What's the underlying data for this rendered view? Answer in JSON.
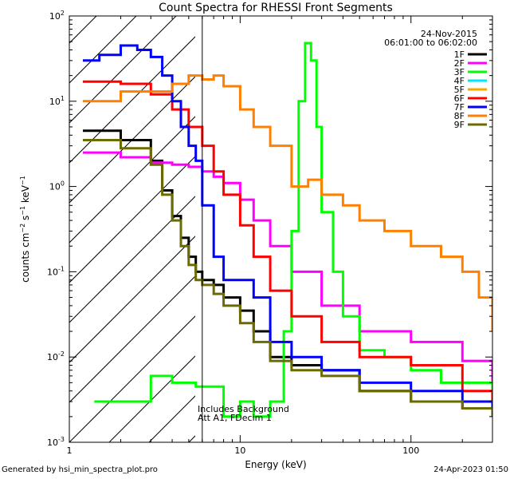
{
  "chart_data": {
    "type": "line",
    "title": "Count Spectra for RHESSI Front Segments",
    "xlabel": "Energy (keV)",
    "ylabel": "counts cm-2 s-1 keV-1",
    "xscale": "log",
    "yscale": "log",
    "xlim": [
      1,
      300
    ],
    "ylim": [
      0.001,
      100
    ],
    "x_tick_labels": [
      "1",
      "10",
      "100"
    ],
    "y_tick_labels": [
      "10-3",
      "10-2",
      "10-1",
      "100",
      "101",
      "102"
    ],
    "date": "24-Nov-2015",
    "time_range": "06:01:00 to 06:02:00",
    "threshold_energy_keV": 6,
    "annotations": [
      "Includes Background",
      "Att A1, FDecim 1"
    ],
    "legend_position": "top-right",
    "series": [
      {
        "name": "1F",
        "color": "#000000",
        "x": [
          1.2,
          2,
          3,
          3.5,
          4,
          4.5,
          5,
          5.5,
          6,
          7,
          8,
          10,
          12,
          15,
          20,
          30,
          50,
          100,
          200,
          300
        ],
        "values": [
          4.5,
          3.5,
          2.0,
          0.9,
          0.45,
          0.25,
          0.15,
          0.1,
          0.08,
          0.07,
          0.05,
          0.035,
          0.02,
          0.01,
          0.008,
          0.007,
          0.004,
          0.003,
          0.0025,
          0.002
        ]
      },
      {
        "name": "2F",
        "color": "#ff00ff",
        "x": [
          1.2,
          2,
          3,
          4,
          5,
          6,
          7,
          8,
          10,
          12,
          15,
          20,
          30,
          50,
          100,
          200,
          300
        ],
        "values": [
          2.5,
          2.2,
          1.9,
          1.8,
          1.7,
          1.5,
          1.3,
          1.1,
          0.7,
          0.4,
          0.2,
          0.1,
          0.04,
          0.02,
          0.015,
          0.009,
          0.005
        ]
      },
      {
        "name": "3F",
        "color": "#00ff00",
        "x": [
          1.4,
          2,
          3,
          4,
          5.5,
          8,
          10,
          12,
          15,
          18,
          20,
          22,
          24,
          26,
          28,
          30,
          35,
          40,
          50,
          70,
          100,
          150,
          300
        ],
        "values": [
          0.003,
          0.003,
          0.006,
          0.005,
          0.0045,
          0.002,
          0.003,
          0.002,
          0.003,
          0.02,
          0.3,
          10,
          48,
          30,
          5,
          0.5,
          0.1,
          0.03,
          0.012,
          0.01,
          0.007,
          0.005,
          0.003
        ]
      },
      {
        "name": "4F",
        "color": "#00e5ff",
        "x": [],
        "values": []
      },
      {
        "name": "5F",
        "color": "#ffa500",
        "x": [],
        "values": []
      },
      {
        "name": "6F",
        "color": "#ff0000",
        "x": [
          1.2,
          2,
          3,
          4,
          5,
          6,
          7,
          8,
          10,
          12,
          15,
          20,
          30,
          50,
          100,
          200,
          300
        ],
        "values": [
          17,
          16,
          12,
          8,
          5,
          3,
          1.5,
          0.8,
          0.35,
          0.15,
          0.06,
          0.03,
          0.015,
          0.01,
          0.008,
          0.004,
          0.003
        ]
      },
      {
        "name": "7F",
        "color": "#0000ff",
        "x": [
          1.2,
          1.5,
          2,
          2.5,
          3,
          3.5,
          4,
          4.5,
          5,
          5.5,
          6,
          7,
          8,
          10,
          12,
          15,
          20,
          30,
          50,
          100,
          200,
          300
        ],
        "values": [
          30,
          35,
          45,
          40,
          33,
          20,
          10,
          5,
          3,
          2,
          0.6,
          0.15,
          0.08,
          0.08,
          0.05,
          0.015,
          0.01,
          0.007,
          0.005,
          0.004,
          0.003,
          0.002
        ]
      },
      {
        "name": "8F",
        "color": "#ff8000",
        "x": [
          1.2,
          2,
          3,
          4,
          5,
          6,
          7,
          8,
          10,
          12,
          15,
          20,
          25,
          30,
          40,
          50,
          70,
          100,
          150,
          200,
          250,
          300
        ],
        "values": [
          10,
          13,
          13,
          16,
          20,
          18,
          20,
          15,
          8,
          5,
          3,
          1,
          1.2,
          0.8,
          0.6,
          0.4,
          0.3,
          0.2,
          0.15,
          0.1,
          0.05,
          0.02
        ]
      },
      {
        "name": "9F",
        "color": "#6b6b00",
        "x": [
          1.2,
          2,
          3,
          3.5,
          4,
          4.5,
          5,
          5.5,
          6,
          7,
          8,
          10,
          12,
          15,
          20,
          30,
          50,
          100,
          200,
          300
        ],
        "values": [
          3.5,
          2.8,
          1.8,
          0.8,
          0.4,
          0.2,
          0.12,
          0.08,
          0.07,
          0.055,
          0.04,
          0.025,
          0.015,
          0.009,
          0.007,
          0.006,
          0.004,
          0.003,
          0.0025,
          0.002
        ]
      }
    ]
  },
  "footer": {
    "left": "Generated by hsi_min_spectra_plot.pro",
    "right": "24-Apr-2023 01:50"
  }
}
